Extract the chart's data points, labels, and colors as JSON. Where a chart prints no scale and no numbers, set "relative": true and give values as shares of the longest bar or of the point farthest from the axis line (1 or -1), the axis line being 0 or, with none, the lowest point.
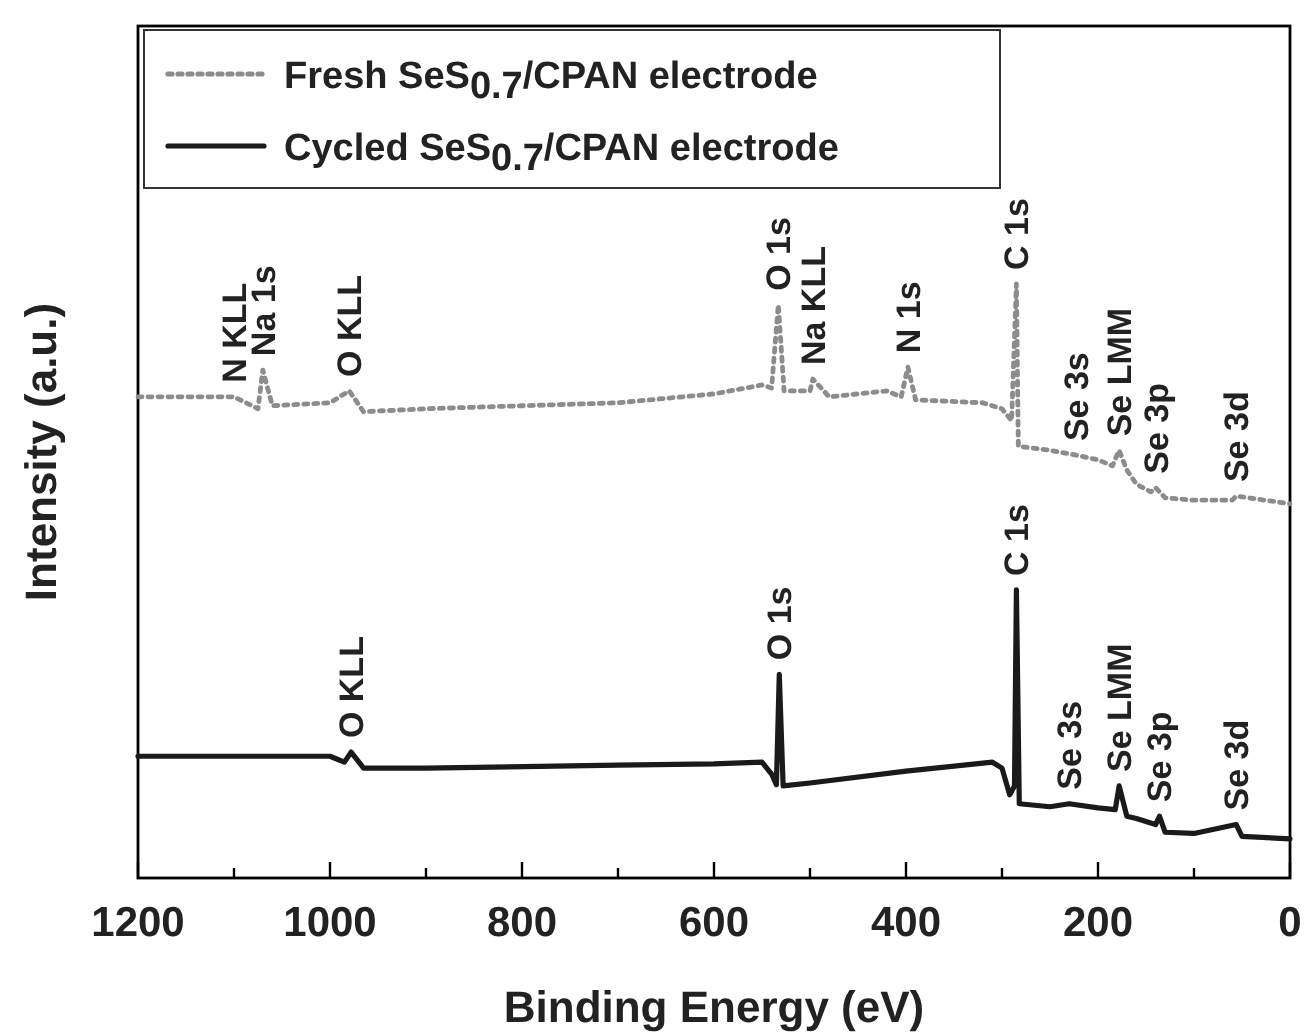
{
  "chart_data": {
    "type": "line",
    "relative": true,
    "xlabel": "Binding Energy (eV)",
    "ylabel": "Intensity (a.u.)",
    "xlim": [
      1200,
      0
    ],
    "xticks": [
      1200,
      {
        "value": 1100,
        "label": null
      },
      1000,
      {
        "value": 900,
        "label": null
      },
      800,
      {
        "value": 700,
        "label": null
      },
      600,
      {
        "value": 500,
        "label": null
      },
      400,
      {
        "value": 300,
        "label": null
      },
      200,
      {
        "value": 100,
        "label": null
      },
      0
    ],
    "tick_labels": "x",
    "legend": "top left",
    "grid": false,
    "series": [
      {
        "name": "Fresh SeS$_{0.7}$/CPAN electrode",
        "color": "#8c8c8c",
        "line_style": "dotted",
        "x": [
          1200,
          1100,
          1075,
          1070,
          1060,
          1000,
          980,
          965,
          900,
          800,
          700,
          600,
          550,
          540,
          533,
          527,
          500,
          497,
          480,
          420,
          405,
          398,
          390,
          320,
          300,
          290,
          285,
          283,
          250,
          223,
          200,
          185,
          178,
          170,
          160,
          145,
          140,
          130,
          100,
          60,
          56,
          0
        ],
        "values": [
          0.81,
          0.81,
          0.79,
          0.855,
          0.795,
          0.8,
          0.82,
          0.785,
          0.79,
          0.795,
          0.8,
          0.815,
          0.83,
          0.825,
          0.965,
          0.82,
          0.82,
          0.84,
          0.81,
          0.82,
          0.81,
          0.86,
          0.805,
          0.8,
          0.79,
          0.77,
          1.0,
          0.727,
          0.72,
          0.712,
          0.704,
          0.694,
          0.72,
          0.687,
          0.663,
          0.65,
          0.657,
          0.64,
          0.636,
          0.636,
          0.643,
          0.63
        ]
      },
      {
        "name": "Cycled SeS$_{0.7}$/CPAN electrode",
        "color": "#1a1a1a",
        "line_style": "solid",
        "x": [
          1200,
          1000,
          985,
          978,
          965,
          900,
          700,
          600,
          550,
          540,
          535,
          532,
          528,
          500,
          400,
          310,
          300,
          292,
          287,
          285,
          282,
          250,
          230,
          200,
          182,
          178,
          170,
          160,
          140,
          136,
          130,
          100,
          56,
          50,
          0
        ],
        "values": [
          0.205,
          0.205,
          0.195,
          0.212,
          0.185,
          0.185,
          0.19,
          0.192,
          0.195,
          0.175,
          0.157,
          0.343,
          0.155,
          0.16,
          0.18,
          0.195,
          0.185,
          0.14,
          0.155,
          0.485,
          0.125,
          0.12,
          0.125,
          0.118,
          0.115,
          0.155,
          0.104,
          0.1,
          0.09,
          0.104,
          0.077,
          0.075,
          0.09,
          0.07,
          0.066
        ]
      }
    ],
    "annotations": [
      {
        "text": "N KLL",
        "x": 1100,
        "y": 0.81
      },
      {
        "text": "Na 1s",
        "x": 1070,
        "y": 0.855
      },
      {
        "text": "O KLL",
        "x": 980,
        "y": 0.82
      },
      {
        "text": "O 1s",
        "x": 533,
        "y": 0.965
      },
      {
        "text": "Na KLL",
        "x": 497,
        "y": 0.84
      },
      {
        "text": "N 1s",
        "x": 398,
        "y": 0.86
      },
      {
        "text": "C 1s",
        "x": 285,
        "y": 1.0
      },
      {
        "text": "Se 3s",
        "x": 223,
        "y": 0.712
      },
      {
        "text": "Se LMM",
        "x": 178,
        "y": 0.72
      },
      {
        "text": "Se 3p",
        "x": 140,
        "y": 0.657
      },
      {
        "text": "Se 3d",
        "x": 56,
        "y": 0.643
      },
      {
        "text": "O KLL",
        "x": 978,
        "y": 0.212
      },
      {
        "text": "O 1s",
        "x": 532,
        "y": 0.343
      },
      {
        "text": "C 1s",
        "x": 285,
        "y": 0.485
      },
      {
        "text": "Se 3s",
        "x": 230,
        "y": 0.125
      },
      {
        "text": "Se LMM",
        "x": 178,
        "y": 0.155
      },
      {
        "text": "Se 3p",
        "x": 136,
        "y": 0.104
      },
      {
        "text": "Se 3d",
        "x": 56,
        "y": 0.09
      }
    ]
  }
}
